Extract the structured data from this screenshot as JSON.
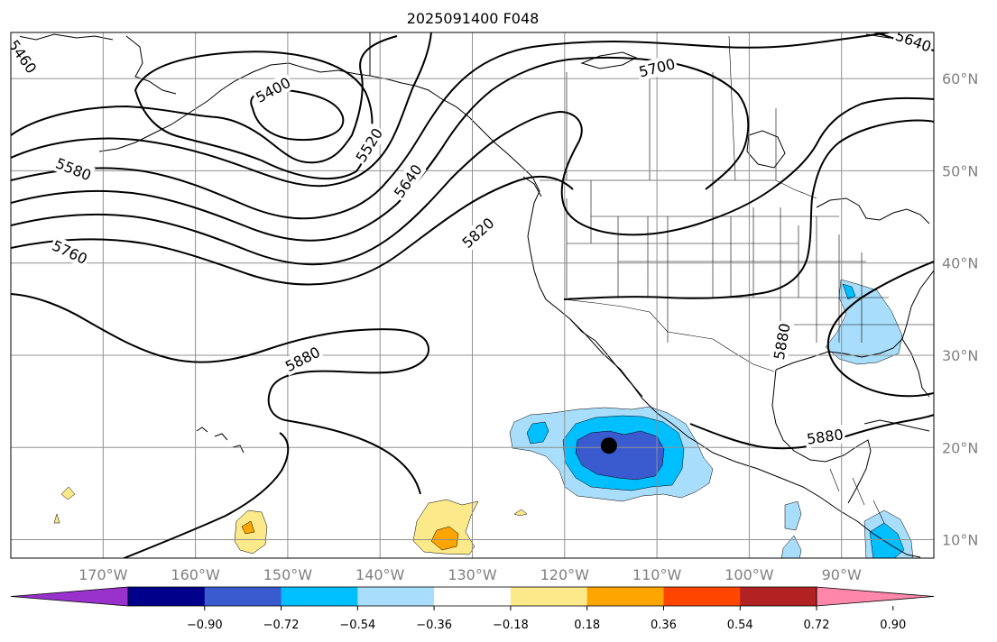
{
  "title": "2025091400 F048",
  "chart_data": {
    "type": "contour-map",
    "projection": "plate-carree",
    "lon_range": [
      -180,
      -80
    ],
    "lat_range": [
      8,
      65
    ],
    "lat_ticks": [
      {
        "lat": 60,
        "label": "60°N"
      },
      {
        "lat": 50,
        "label": "50°N"
      },
      {
        "lat": 40,
        "label": "40°N"
      },
      {
        "lat": 30,
        "label": "30°N"
      },
      {
        "lat": 20,
        "label": "20°N"
      },
      {
        "lat": 10,
        "label": "10°N"
      }
    ],
    "lon_ticks": [
      {
        "lon": -170,
        "label": "170°W"
      },
      {
        "lon": -160,
        "label": "160°W"
      },
      {
        "lon": -150,
        "label": "150°W"
      },
      {
        "lon": -140,
        "label": "140°W"
      },
      {
        "lon": -130,
        "label": "130°W"
      },
      {
        "lon": -120,
        "label": "120°W"
      },
      {
        "lon": -110,
        "label": "110°W"
      },
      {
        "lon": -100,
        "label": "100°W"
      },
      {
        "lon": -90,
        "label": "90°W"
      }
    ],
    "grid": true,
    "contour_labels": [
      {
        "text": "5460",
        "lon": -178.7,
        "lat": 62.4,
        "rot": 55
      },
      {
        "text": "5400",
        "lon": -151.6,
        "lat": 58.8,
        "rot": -28
      },
      {
        "text": "5520",
        "lon": -141.2,
        "lat": 52.8,
        "rot": -58
      },
      {
        "text": "5580",
        "lon": -173.2,
        "lat": 50.2,
        "rot": 22
      },
      {
        "text": "5640",
        "lon": -137.0,
        "lat": 48.9,
        "rot": -55
      },
      {
        "text": "5700",
        "lon": -110.0,
        "lat": 61.2,
        "rot": -14
      },
      {
        "text": "5640",
        "lon": -82.2,
        "lat": 64.1,
        "rot": 20
      },
      {
        "text": "5760",
        "lon": -173.6,
        "lat": 41.2,
        "rot": 25
      },
      {
        "text": "5820",
        "lon": -129.4,
        "lat": 43.3,
        "rot": -42
      },
      {
        "text": "5880",
        "lon": -148.4,
        "lat": 29.6,
        "rot": -27
      },
      {
        "text": "5880",
        "lon": -91.8,
        "lat": 21.2,
        "rot": -8
      },
      {
        "text": "5880",
        "lon": -96.5,
        "lat": 31.5,
        "rot": -80
      }
    ],
    "storm_center": {
      "lon": -115.2,
      "lat": 20.2
    },
    "colorbar": {
      "tick_labels": [
        "−0.90",
        "−0.72",
        "−0.54",
        "−0.36",
        "−0.18",
        "0.18",
        "0.36",
        "0.54",
        "0.72",
        "0.90"
      ],
      "colors": [
        "#9932cc",
        "#00008b",
        "#3a5bd0",
        "#00bfff",
        "#a8defb",
        "#ffffff",
        "#fce98a",
        "#ffa500",
        "#ff4500",
        "#b22222",
        "#ff88aa"
      ],
      "extend": "both"
    },
    "shading_colors": {
      "-0.54": "#3a5bd0",
      "-0.36": "#00bfff",
      "-0.18": "#a8defb",
      "0.18": "#fce98a",
      "0.36": "#ffa500"
    }
  }
}
